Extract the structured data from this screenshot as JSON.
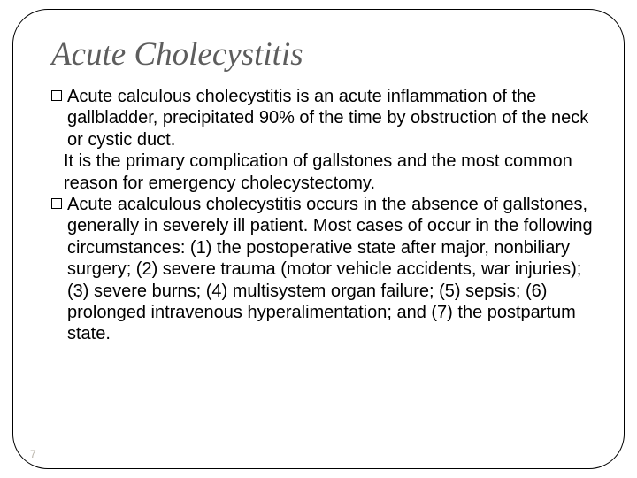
{
  "slide": {
    "title": "Acute Cholecystitis",
    "title_color": "#5d5d5d",
    "title_fontsize": 37,
    "title_font": "Times New Roman italic",
    "body_fontsize": 20,
    "body_color": "#000000",
    "frame_border_color": "#000000",
    "frame_border_radius": 40,
    "background_color": "#ffffff",
    "page_number": "7",
    "page_number_color": "#b9b4aa",
    "bullets": [
      {
        "lead": "Acute calculous cholecystitis is an acute inflammation of the gallbladder, precipitated 90% of the time by obstruction of the neck or cystic duct.",
        "sub": "It is the primary complication of gallstones and the most common reason for emergency cholecystectomy."
      },
      {
        "lead": "Acute acalculous cholecystitis occurs in the absence of gallstones, generally in severely ill patient. Most cases of occur in the following circumstances: (1) the postoperative state after major, nonbiliary surgery; (2) severe trauma (motor vehicle accidents, war injuries); (3) severe burns; (4) multisystem organ failure; (5) sepsis; (6) prolonged intravenous hyperalimentation; and (7) the postpartum state.",
        "sub": ""
      }
    ]
  }
}
